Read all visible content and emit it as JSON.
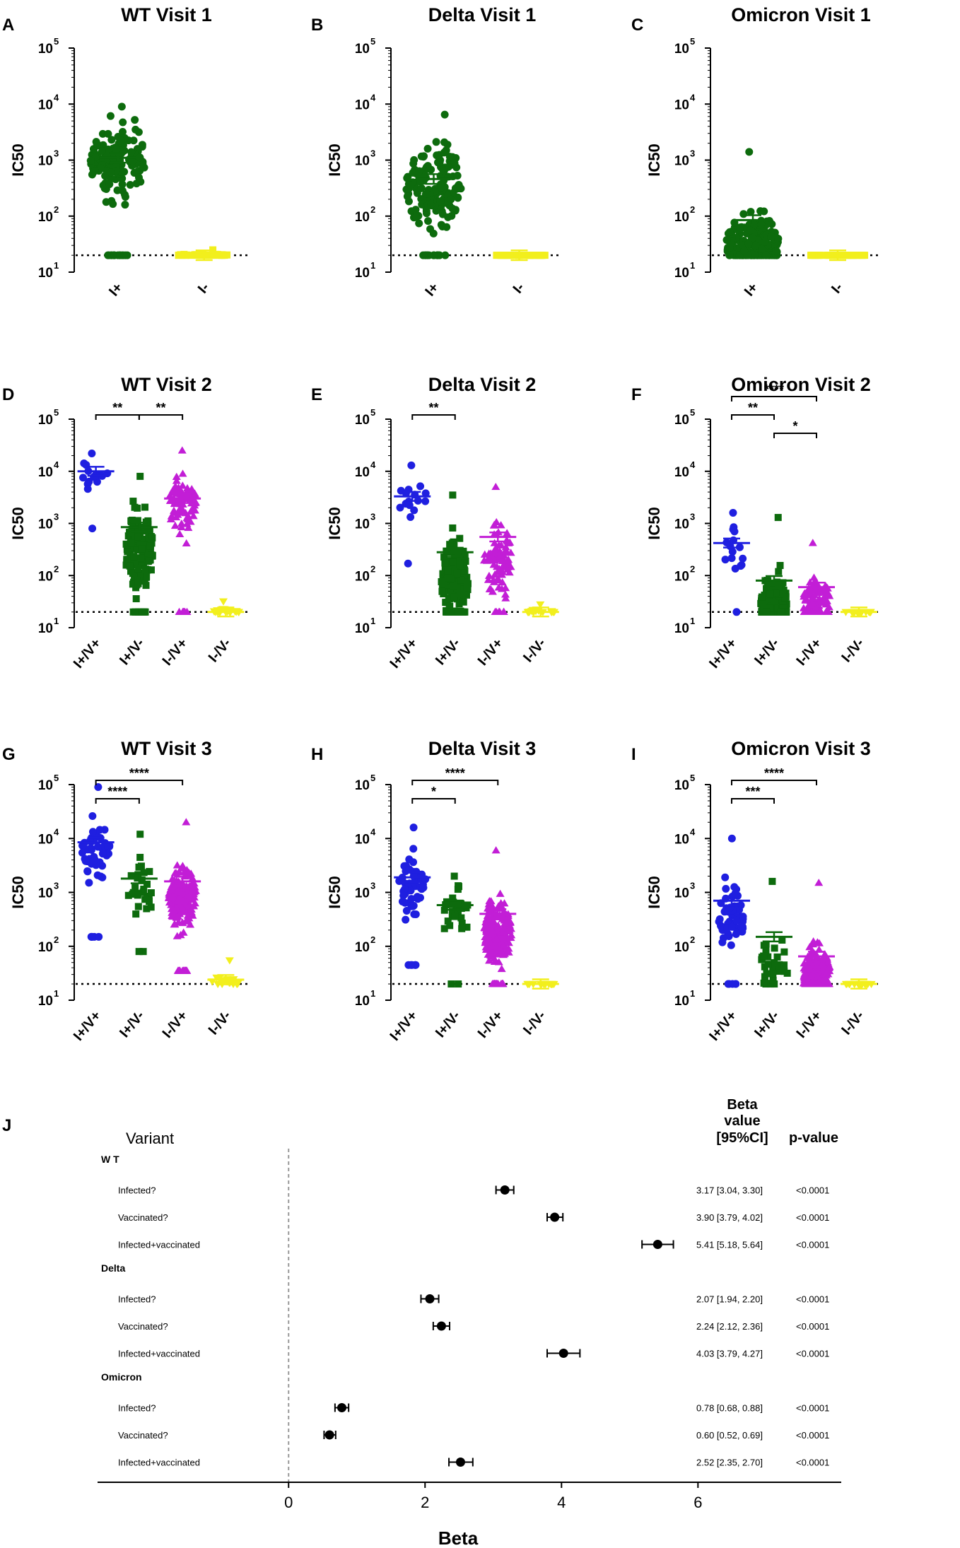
{
  "colors": {
    "group1": "#1f1fe0",
    "group2": "#0d6b0d",
    "group3": "#c21ed6",
    "group4": "#f2ef1d",
    "axis": "#000000",
    "dotted": "#000000",
    "zero_line": "#999999"
  },
  "chart_data": [
    {
      "id": "A",
      "type": "scatter",
      "title": "WT Visit 1",
      "ylabel": "IC50",
      "yscale": "log10",
      "ylim": [
        10,
        100000
      ],
      "threshold": 20,
      "categories": [
        "I+",
        "I-"
      ],
      "groups": [
        {
          "name": "I+",
          "color_key": "group2",
          "marker": "circle",
          "n": 170,
          "median": 1000,
          "spread": 0.55,
          "min": 20,
          "max": 9000,
          "mean": 1100
        },
        {
          "name": "I-",
          "color_key": "group4",
          "marker": "square",
          "n": 40,
          "median": 20,
          "spread": 0.02,
          "min": 20,
          "max": 25,
          "mean": 20
        }
      ],
      "significance": []
    },
    {
      "id": "B",
      "type": "scatter",
      "title": "Delta Visit 1",
      "ylabel": "IC50",
      "yscale": "log10",
      "ylim": [
        10,
        100000
      ],
      "threshold": 20,
      "categories": [
        "I+",
        "I-"
      ],
      "groups": [
        {
          "name": "I+",
          "color_key": "group2",
          "marker": "circle",
          "n": 170,
          "median": 350,
          "spread": 0.6,
          "min": 20,
          "max": 6500,
          "mean": 460
        },
        {
          "name": "I-",
          "color_key": "group4",
          "marker": "square",
          "n": 40,
          "median": 20,
          "spread": 0.0,
          "min": 20,
          "max": 20,
          "mean": 20
        }
      ],
      "significance": []
    },
    {
      "id": "C",
      "type": "scatter",
      "title": "Omicron  Visit 1",
      "ylabel": "IC50",
      "yscale": "log10",
      "ylim": [
        10,
        100000
      ],
      "threshold": 20,
      "categories": [
        "I+",
        "I-"
      ],
      "groups": [
        {
          "name": "I+",
          "color_key": "group2",
          "marker": "circle",
          "n": 170,
          "median": 35,
          "spread": 0.45,
          "min": 20,
          "max": 1400,
          "mean": 85
        },
        {
          "name": "I-",
          "color_key": "group4",
          "marker": "square",
          "n": 40,
          "median": 20,
          "spread": 0.0,
          "min": 20,
          "max": 20,
          "mean": 20
        }
      ],
      "significance": []
    },
    {
      "id": "D",
      "type": "scatter",
      "title": "WT Visit 2",
      "ylabel": "IC50",
      "yscale": "log10",
      "ylim": [
        10,
        100000
      ],
      "threshold": 20,
      "categories": [
        "I+/V+",
        "I+/V-",
        "I-/V+",
        "I-/V-"
      ],
      "groups": [
        {
          "name": "I+/V+",
          "color_key": "group1",
          "marker": "circle",
          "n": 16,
          "median": 9000,
          "spread": 0.3,
          "min": 800,
          "max": 22000,
          "mean": 10000
        },
        {
          "name": "I+/V-",
          "color_key": "group2",
          "marker": "square",
          "n": 150,
          "median": 300,
          "spread": 0.6,
          "min": 20,
          "max": 8000,
          "mean": 850
        },
        {
          "name": "I-/V+",
          "color_key": "group3",
          "marker": "triangle-up",
          "n": 90,
          "median": 2500,
          "spread": 0.45,
          "min": 20,
          "max": 25000,
          "mean": 3000
        },
        {
          "name": "I-/V-",
          "color_key": "group4",
          "marker": "triangle-down",
          "n": 20,
          "median": 20,
          "spread": 0.05,
          "min": 20,
          "max": 32,
          "mean": 20
        }
      ],
      "significance": [
        {
          "from": 0,
          "to": 1,
          "label": "**",
          "level": 1
        },
        {
          "from": 1,
          "to": 2,
          "label": "**",
          "level": 1
        }
      ]
    },
    {
      "id": "E",
      "type": "scatter",
      "title": "Delta Visit 2",
      "ylabel": "IC50",
      "yscale": "log10",
      "ylim": [
        10,
        100000
      ],
      "threshold": 20,
      "categories": [
        "I+/V+",
        "I+/V-",
        "I-/V+",
        "I-/V-"
      ],
      "groups": [
        {
          "name": "I+/V+",
          "color_key": "group1",
          "marker": "circle",
          "n": 16,
          "median": 3000,
          "spread": 0.4,
          "min": 170,
          "max": 13000,
          "mean": 3300
        },
        {
          "name": "I+/V-",
          "color_key": "group2",
          "marker": "square",
          "n": 150,
          "median": 80,
          "spread": 0.55,
          "min": 20,
          "max": 3500,
          "mean": 280
        },
        {
          "name": "I-/V+",
          "color_key": "group3",
          "marker": "triangle-up",
          "n": 90,
          "median": 200,
          "spread": 0.55,
          "min": 20,
          "max": 5000,
          "mean": 550
        },
        {
          "name": "I-/V-",
          "color_key": "group4",
          "marker": "triangle-down",
          "n": 20,
          "median": 20,
          "spread": 0.05,
          "min": 20,
          "max": 28,
          "mean": 20
        }
      ],
      "significance": [
        {
          "from": 0,
          "to": 1,
          "label": "**",
          "level": 1
        }
      ]
    },
    {
      "id": "F",
      "type": "scatter",
      "title": "Omicron Visit 2",
      "ylabel": "IC50",
      "yscale": "log10",
      "ylim": [
        10,
        100000
      ],
      "threshold": 20,
      "categories": [
        "I+/V+",
        "I+/V-",
        "I-/V+",
        "I-/V-"
      ],
      "groups": [
        {
          "name": "I+/V+",
          "color_key": "group1",
          "marker": "circle",
          "n": 16,
          "median": 300,
          "spread": 0.45,
          "min": 20,
          "max": 1600,
          "mean": 420
        },
        {
          "name": "I+/V-",
          "color_key": "group2",
          "marker": "square",
          "n": 150,
          "median": 30,
          "spread": 0.4,
          "min": 20,
          "max": 1300,
          "mean": 80
        },
        {
          "name": "I-/V+",
          "color_key": "group3",
          "marker": "triangle-up",
          "n": 90,
          "median": 30,
          "spread": 0.35,
          "min": 20,
          "max": 420,
          "mean": 60
        },
        {
          "name": "I-/V-",
          "color_key": "group4",
          "marker": "triangle-down",
          "n": 20,
          "median": 20,
          "spread": 0.0,
          "min": 20,
          "max": 20,
          "mean": 20
        }
      ],
      "significance": [
        {
          "from": 0,
          "to": 1,
          "label": "**",
          "level": 1
        },
        {
          "from": 1,
          "to": 2,
          "label": "*",
          "level": 0
        },
        {
          "from": 0,
          "to": 2,
          "label": "****",
          "level": 2
        }
      ]
    },
    {
      "id": "G",
      "type": "scatter",
      "title": "WT Visit 3",
      "ylabel": "IC50",
      "yscale": "log10",
      "ylim": [
        10,
        100000
      ],
      "threshold": 20,
      "categories": [
        "I+/V+",
        "I+/V-",
        "I-/V+",
        "I-/V-"
      ],
      "groups": [
        {
          "name": "I+/V+",
          "color_key": "group1",
          "marker": "circle",
          "n": 60,
          "median": 6000,
          "spread": 0.4,
          "min": 150,
          "max": 90000,
          "mean": 8500
        },
        {
          "name": "I+/V-",
          "color_key": "group2",
          "marker": "square",
          "n": 30,
          "median": 1000,
          "spread": 0.45,
          "min": 80,
          "max": 12000,
          "mean": 1800
        },
        {
          "name": "I-/V+",
          "color_key": "group3",
          "marker": "triangle-up",
          "n": 220,
          "median": 800,
          "spread": 0.4,
          "min": 35,
          "max": 20000,
          "mean": 1600
        },
        {
          "name": "I-/V-",
          "color_key": "group4",
          "marker": "triangle-down",
          "n": 20,
          "median": 22,
          "spread": 0.08,
          "min": 20,
          "max": 55,
          "mean": 24
        }
      ],
      "significance": [
        {
          "from": 0,
          "to": 1,
          "label": "****",
          "level": 0
        },
        {
          "from": 0,
          "to": 2,
          "label": "****",
          "level": 1
        }
      ]
    },
    {
      "id": "H",
      "type": "scatter",
      "title": "Delta Visit 3",
      "ylabel": "IC50",
      "yscale": "log10",
      "ylim": [
        10,
        100000
      ],
      "threshold": 20,
      "categories": [
        "I+/V+",
        "I+/V-",
        "I-/V+",
        "I-/V-"
      ],
      "groups": [
        {
          "name": "I+/V+",
          "color_key": "group1",
          "marker": "circle",
          "n": 60,
          "median": 1300,
          "spread": 0.4,
          "min": 45,
          "max": 16000,
          "mean": 1900
        },
        {
          "name": "I+/V-",
          "color_key": "group2",
          "marker": "square",
          "n": 30,
          "median": 400,
          "spread": 0.45,
          "min": 20,
          "max": 2000,
          "mean": 580
        },
        {
          "name": "I-/V+",
          "color_key": "group3",
          "marker": "triangle-up",
          "n": 220,
          "median": 180,
          "spread": 0.45,
          "min": 20,
          "max": 6000,
          "mean": 400
        },
        {
          "name": "I-/V-",
          "color_key": "group4",
          "marker": "triangle-down",
          "n": 20,
          "median": 20,
          "spread": 0.0,
          "min": 20,
          "max": 20,
          "mean": 20
        }
      ],
      "significance": [
        {
          "from": 0,
          "to": 1,
          "label": "*",
          "level": 0
        },
        {
          "from": 0,
          "to": 2,
          "label": "****",
          "level": 1
        }
      ]
    },
    {
      "id": "I",
      "type": "scatter",
      "title": "Omicron Visit 3",
      "ylabel": "IC50",
      "yscale": "log10",
      "ylim": [
        10,
        100000
      ],
      "threshold": 20,
      "categories": [
        "I+/V+",
        "I+/V-",
        "I-/V+",
        "I-/V-"
      ],
      "groups": [
        {
          "name": "I+/V+",
          "color_key": "group1",
          "marker": "circle",
          "n": 60,
          "median": 350,
          "spread": 0.45,
          "min": 20,
          "max": 10000,
          "mean": 700
        },
        {
          "name": "I+/V-",
          "color_key": "group2",
          "marker": "square",
          "n": 30,
          "median": 40,
          "spread": 0.45,
          "min": 20,
          "max": 1600,
          "mean": 150
        },
        {
          "name": "I-/V+",
          "color_key": "group3",
          "marker": "triangle-up",
          "n": 220,
          "median": 30,
          "spread": 0.4,
          "min": 20,
          "max": 1500,
          "mean": 65
        },
        {
          "name": "I-/V-",
          "color_key": "group4",
          "marker": "triangle-down",
          "n": 20,
          "median": 20,
          "spread": 0.0,
          "min": 20,
          "max": 20,
          "mean": 20
        }
      ],
      "significance": [
        {
          "from": 0,
          "to": 1,
          "label": "***",
          "level": 0
        },
        {
          "from": 0,
          "to": 2,
          "label": "****",
          "level": 1
        }
      ]
    },
    {
      "id": "J",
      "type": "forest",
      "header_left": "Variant",
      "header_beta": [
        "Beta",
        "value",
        "[95%CI]"
      ],
      "header_p": "p-value",
      "xlabel": "Beta",
      "xlim": [
        -2.8,
        8.1
      ],
      "xticks": [
        0,
        2,
        4,
        6
      ],
      "sections": [
        {
          "label": "W T",
          "rows": [
            {
              "label": "Infected?",
              "beta": 3.17,
              "lo": 3.04,
              "hi": 3.3,
              "text": "3.17 [3.04, 3.30]",
              "p": "<0.0001"
            },
            {
              "label": "Vaccinated?",
              "beta": 3.9,
              "lo": 3.79,
              "hi": 4.02,
              "text": "3.90 [3.79, 4.02]",
              "p": "<0.0001"
            },
            {
              "label": "Infected+vaccinated",
              "beta": 5.41,
              "lo": 5.18,
              "hi": 5.64,
              "text": "5.41 [5.18, 5.64]",
              "p": "<0.0001"
            }
          ]
        },
        {
          "label": "Delta",
          "rows": [
            {
              "label": "Infected?",
              "beta": 2.07,
              "lo": 1.94,
              "hi": 2.2,
              "text": "2.07 [1.94, 2.20]",
              "p": "<0.0001"
            },
            {
              "label": "Vaccinated?",
              "beta": 2.24,
              "lo": 2.12,
              "hi": 2.36,
              "text": "2.24 [2.12, 2.36]",
              "p": "<0.0001"
            },
            {
              "label": "Infected+vaccinated",
              "beta": 4.03,
              "lo": 3.79,
              "hi": 4.27,
              "text": "4.03 [3.79, 4.27]",
              "p": "<0.0001"
            }
          ]
        },
        {
          "label": "Omicron",
          "rows": [
            {
              "label": "Infected?",
              "beta": 0.78,
              "lo": 0.68,
              "hi": 0.88,
              "text": "0.78 [0.68, 0.88]",
              "p": "<0.0001"
            },
            {
              "label": "Vaccinated?",
              "beta": 0.6,
              "lo": 0.52,
              "hi": 0.69,
              "text": "0.60 [0.52, 0.69]",
              "p": "<0.0001"
            },
            {
              "label": "Infected+vaccinated",
              "beta": 2.52,
              "lo": 2.35,
              "hi": 2.7,
              "text": "2.52 [2.35, 2.70]",
              "p": "<0.0001"
            }
          ]
        }
      ]
    }
  ]
}
